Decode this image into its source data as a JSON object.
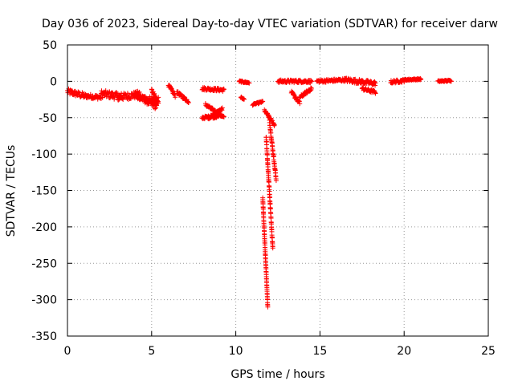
{
  "chart_data": {
    "type": "scatter",
    "title": "Day 036 of 2023, Sidereal Day-to-day VTEC variation (SDTVAR) for receiver darw",
    "xlabel": "GPS time / hours",
    "ylabel": "SDTVAR / TECUs",
    "xlim": [
      0,
      25
    ],
    "ylim": [
      -350,
      50
    ],
    "x_ticks": [
      0,
      5,
      10,
      15,
      20,
      25
    ],
    "y_ticks": [
      50,
      0,
      -50,
      -100,
      -150,
      -200,
      -250,
      -300,
      -350
    ],
    "grid": true,
    "marker": "+",
    "color": "#ff0000",
    "series": [
      {
        "name": "SDTVAR",
        "segments": [
          {
            "x": [
              0.0,
              1.0
            ],
            "y": [
              -14,
              -20
            ],
            "spread": 4
          },
          {
            "x": [
              1.0,
              2.0
            ],
            "y": [
              -20,
              -22
            ],
            "spread": 3
          },
          {
            "x": [
              2.0,
              3.2
            ],
            "y": [
              -17,
              -21
            ],
            "spread": 5
          },
          {
            "x": [
              3.0,
              4.3
            ],
            "y": [
              -22,
              -18
            ],
            "spread": 5
          },
          {
            "x": [
              4.0,
              5.3
            ],
            "y": [
              -18,
              -35
            ],
            "spread": 4
          },
          {
            "x": [
              4.2,
              5.4
            ],
            "y": [
              -22,
              -26
            ],
            "spread": 4
          },
          {
            "x": [
              5.0,
              5.4
            ],
            "y": [
              -12,
              -30
            ],
            "spread": 2
          },
          {
            "x": [
              6.0,
              6.4
            ],
            "y": [
              -5,
              -20
            ],
            "spread": 2
          },
          {
            "x": [
              6.5,
              7.2
            ],
            "y": [
              -15,
              -28
            ],
            "spread": 2
          },
          {
            "x": [
              8.0,
              9.3
            ],
            "y": [
              -10,
              -12
            ],
            "spread": 2
          },
          {
            "x": [
              8.2,
              9.3
            ],
            "y": [
              -32,
              -50
            ],
            "spread": 2
          },
          {
            "x": [
              8.0,
              9.0
            ],
            "y": [
              -50,
              -48
            ],
            "spread": 2
          },
          {
            "x": [
              8.4,
              9.2
            ],
            "y": [
              -50,
              -38
            ],
            "spread": 2
          },
          {
            "x": [
              10.2,
              10.8
            ],
            "y": [
              0,
              -2
            ],
            "spread": 1
          },
          {
            "x": [
              10.3,
              10.5
            ],
            "y": [
              -22,
              -25
            ],
            "spread": 1
          },
          {
            "x": [
              11.0,
              11.6
            ],
            "y": [
              -32,
              -28
            ],
            "spread": 1
          },
          {
            "x": [
              11.7,
              12.3
            ],
            "y": [
              -40,
              -60
            ],
            "spread": 2
          },
          {
            "x": [
              11.6,
              11.9
            ],
            "y": [
              -160,
              -310
            ],
            "spread": 1
          },
          {
            "x": [
              11.8,
              12.2
            ],
            "y": [
              -75,
              -230
            ],
            "spread": 2
          },
          {
            "x": [
              12.0,
              12.4
            ],
            "y": [
              -55,
              -135
            ],
            "spread": 2
          },
          {
            "x": [
              12.5,
              14.5
            ],
            "y": [
              0,
              0
            ],
            "spread": 2
          },
          {
            "x": [
              13.3,
              13.8
            ],
            "y": [
              -15,
              -30
            ],
            "spread": 2
          },
          {
            "x": [
              13.8,
              14.5
            ],
            "y": [
              -22,
              -10
            ],
            "spread": 2
          },
          {
            "x": [
              14.8,
              16.5
            ],
            "y": [
              0,
              2
            ],
            "spread": 2
          },
          {
            "x": [
              16.5,
              18.3
            ],
            "y": [
              2,
              -3
            ],
            "spread": 3
          },
          {
            "x": [
              17.5,
              18.3
            ],
            "y": [
              -10,
              -15
            ],
            "spread": 2
          },
          {
            "x": [
              19.2,
              20.0
            ],
            "y": [
              -1,
              1
            ],
            "spread": 2
          },
          {
            "x": [
              20.0,
              21.0
            ],
            "y": [
              2,
              3
            ],
            "spread": 1
          },
          {
            "x": [
              22.0,
              22.8
            ],
            "y": [
              0,
              1
            ],
            "spread": 1
          }
        ]
      }
    ]
  }
}
